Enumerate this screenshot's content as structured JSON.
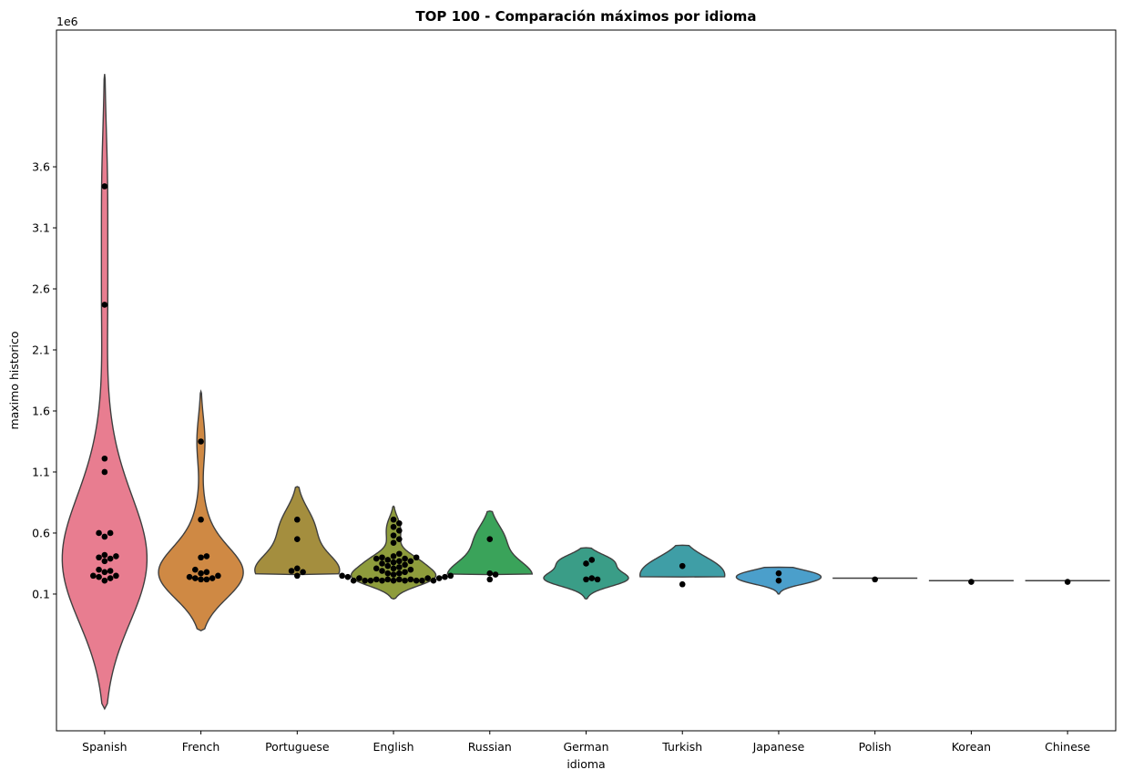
{
  "chart_data": {
    "type": "violin",
    "title": "TOP 100 - Comparación máximos por idioma",
    "xlabel": "idioma",
    "ylabel": "maximo historico",
    "y_offset_label": "1e6",
    "y_ticks": [
      0.1,
      0.6,
      1.1,
      1.6,
      2.1,
      2.6,
      3.1,
      3.6
    ],
    "y_tick_labels": [
      "0.1",
      "0.6",
      "1.1",
      "1.6",
      "2.1",
      "2.6",
      "3.1",
      "3.6"
    ],
    "ylim": [
      -1.02,
      4.72
    ],
    "y_scale_factor": 1000000,
    "legend": "none",
    "grid": false,
    "overlay": "swarm",
    "categories": [
      "Spanish",
      "French",
      "Portuguese",
      "English",
      "Russian",
      "German",
      "Turkish",
      "Japanese",
      "Polish",
      "Korean",
      "Chinese"
    ],
    "colors": [
      "#e87d90",
      "#cf8944",
      "#a48e3e",
      "#8e9c3c",
      "#3aa35a",
      "#3a9d87",
      "#3f9ea6",
      "#4b9fcb",
      "#9a9ce6",
      "#cf8fe0",
      "#e58bc6"
    ],
    "violin_extent": [
      [
        -0.84,
        4.36
      ],
      [
        -0.2,
        1.76
      ],
      [
        0.26,
        0.98
      ],
      [
        0.06,
        0.82
      ],
      [
        0.26,
        0.78
      ],
      [
        0.06,
        0.48
      ],
      [
        0.24,
        0.5
      ],
      [
        0.1,
        0.32
      ],
      [
        0.23,
        0.23
      ],
      [
        0.21,
        0.21
      ],
      [
        0.21,
        0.21
      ]
    ],
    "points": [
      [
        3.44,
        2.47,
        1.21,
        1.1,
        0.6,
        0.6,
        0.57,
        0.42,
        0.41,
        0.4,
        0.39,
        0.37,
        0.3,
        0.29,
        0.28,
        0.25,
        0.25,
        0.24,
        0.23,
        0.21
      ],
      [
        1.35,
        0.71,
        0.41,
        0.4,
        0.3,
        0.28,
        0.27,
        0.25,
        0.24,
        0.23,
        0.23,
        0.22,
        0.22
      ],
      [
        0.71,
        0.55,
        0.31,
        0.29,
        0.28,
        0.25
      ],
      [
        0.71,
        0.68,
        0.65,
        0.62,
        0.58,
        0.55,
        0.52,
        0.43,
        0.41,
        0.4,
        0.4,
        0.39,
        0.39,
        0.38,
        0.37,
        0.37,
        0.36,
        0.35,
        0.34,
        0.33,
        0.32,
        0.31,
        0.31,
        0.3,
        0.29,
        0.28,
        0.27,
        0.27,
        0.26,
        0.25,
        0.25,
        0.24,
        0.24,
        0.23,
        0.23,
        0.23,
        0.22,
        0.22,
        0.22,
        0.22,
        0.21,
        0.21,
        0.21,
        0.21,
        0.21,
        0.21,
        0.21,
        0.21,
        0.21
      ],
      [
        0.55,
        0.27,
        0.26,
        0.22
      ],
      [
        0.38,
        0.35,
        0.23,
        0.22,
        0.22
      ],
      [
        0.33,
        0.18
      ],
      [
        0.27,
        0.21
      ],
      [
        0.22
      ],
      [
        0.2
      ],
      [
        0.2
      ]
    ]
  }
}
